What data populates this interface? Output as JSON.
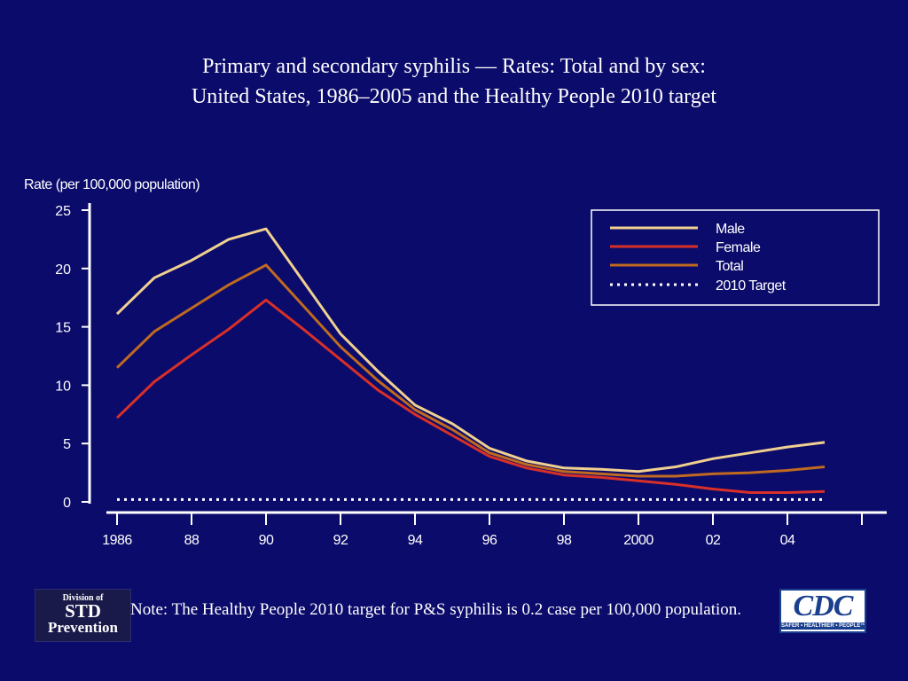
{
  "title": {
    "line1": "Primary and secondary syphilis — Rates: Total and by sex:",
    "line2": "United States, 1986–2005 and the Healthy People 2010 target"
  },
  "note": "Note: The Healthy People 2010 target for P&S syphilis is 0.2 case per 100,000 population.",
  "logos": {
    "std": {
      "line1": "Division of",
      "line2": "STD",
      "line3": "Prevention"
    },
    "cdc": {
      "main": "CDC",
      "tagline": "SAFER • HEALTHIER • PEOPLE™"
    }
  },
  "colors": {
    "background": "#0b0b6b",
    "male": "#f0d090",
    "female": "#d83028",
    "total": "#c06a20",
    "target": "#ffffff"
  },
  "chart_data": {
    "type": "line",
    "ylabel": "Rate (per 100,000 population)",
    "xlabel": "",
    "ylim": [
      0,
      25
    ],
    "yticks": [
      0,
      5,
      10,
      15,
      20,
      25
    ],
    "xlim": [
      1986,
      2006
    ],
    "xtick_positions": [
      1986,
      1988,
      1990,
      1992,
      1994,
      1996,
      1998,
      2000,
      2002,
      2004
    ],
    "xtick_labels": [
      "1986",
      "88",
      "90",
      "92",
      "94",
      "96",
      "98",
      "2000",
      "02",
      "04"
    ],
    "x": [
      1986,
      1987,
      1988,
      1989,
      1990,
      1991,
      1992,
      1993,
      1994,
      1995,
      1996,
      1997,
      1998,
      1999,
      2000,
      2001,
      2002,
      2003,
      2004,
      2005
    ],
    "series": [
      {
        "name": "Male",
        "color_key": "male",
        "style": "solid",
        "values": [
          16.1,
          19.2,
          20.7,
          22.5,
          23.4,
          18.9,
          14.4,
          11.2,
          8.3,
          6.7,
          4.6,
          3.5,
          2.9,
          2.8,
          2.6,
          3.0,
          3.7,
          4.2,
          4.7,
          5.1
        ]
      },
      {
        "name": "Female",
        "color_key": "female",
        "style": "solid",
        "values": [
          7.2,
          10.3,
          12.6,
          14.8,
          17.3,
          14.8,
          12.2,
          9.6,
          7.5,
          5.7,
          3.9,
          2.9,
          2.3,
          2.1,
          1.8,
          1.5,
          1.1,
          0.8,
          0.8,
          0.9
        ]
      },
      {
        "name": "Total",
        "color_key": "total",
        "style": "solid",
        "values": [
          11.5,
          14.6,
          16.6,
          18.6,
          20.3,
          16.8,
          13.3,
          10.4,
          7.9,
          6.2,
          4.2,
          3.2,
          2.6,
          2.4,
          2.2,
          2.2,
          2.4,
          2.5,
          2.7,
          3.0
        ]
      },
      {
        "name": "2010 Target",
        "color_key": "target",
        "style": "dotted",
        "values": [
          0.2,
          0.2,
          0.2,
          0.2,
          0.2,
          0.2,
          0.2,
          0.2,
          0.2,
          0.2,
          0.2,
          0.2,
          0.2,
          0.2,
          0.2,
          0.2,
          0.2,
          0.2,
          0.2,
          0.2
        ]
      }
    ],
    "legend": {
      "position": "top-right"
    },
    "grid": false
  }
}
